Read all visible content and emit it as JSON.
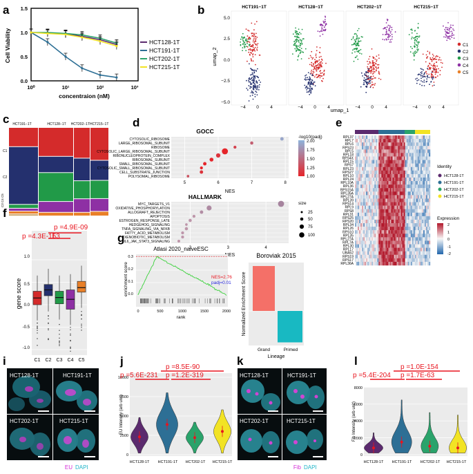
{
  "panel_letters": [
    "a",
    "b",
    "c",
    "d",
    "e",
    "f",
    "g",
    "h",
    "i",
    "j",
    "k",
    "l"
  ],
  "colors": {
    "HCT128": "#5b2a6e",
    "HCT191": "#2d6f95",
    "HCT202": "#2aa36b",
    "HCT215": "#f2e324",
    "C1": "#d42b2b",
    "C2": "#24306e",
    "C3": "#219a48",
    "C4": "#8e30a4",
    "C5": "#e98028",
    "sig": "#e8141e"
  },
  "a": {
    "ylabel": "Cell Viability",
    "xlabel": "concentraion (nM)",
    "yticks": [
      "0.0",
      "0.5",
      "1.0",
      "1.5"
    ],
    "xticks": [
      "10⁰",
      "10¹",
      "10²",
      "10³"
    ],
    "legend": [
      "HCT128-1T",
      "HCT191-1T",
      "HCT202-1T",
      "HCT215-1T"
    ],
    "chart_data": {
      "type": "line",
      "title": "",
      "xlabel": "concentraion (nM)",
      "ylabel": "Cell Viability",
      "xscale": "log",
      "xlim": [
        1,
        1000
      ],
      "ylim": [
        0,
        1.5
      ],
      "series": [
        {
          "name": "HCT128-1T",
          "x": [
            1,
            3,
            10,
            30,
            100,
            300
          ],
          "y": [
            1.0,
            0.99,
            0.97,
            0.92,
            0.85,
            0.75
          ]
        },
        {
          "name": "HCT191-1T",
          "x": [
            1,
            3,
            10,
            30,
            100,
            300
          ],
          "y": [
            1.0,
            0.8,
            0.5,
            0.26,
            0.12,
            0.07
          ]
        },
        {
          "name": "HCT202-1T",
          "x": [
            1,
            3,
            10,
            30,
            100,
            300
          ],
          "y": [
            1.0,
            1.0,
            0.98,
            0.95,
            0.88,
            0.78
          ]
        },
        {
          "name": "HCT215-1T",
          "x": [
            1,
            3,
            10,
            30,
            100,
            300
          ],
          "y": [
            1.0,
            0.98,
            0.96,
            0.9,
            0.82,
            0.72
          ]
        }
      ]
    }
  },
  "b": {
    "titles": [
      "HCT191−1T",
      "HCT128−1T",
      "HCT202−1T",
      "HCT215−1T"
    ],
    "ylabel": "umap_2",
    "xlabel": "umap_1",
    "yticks": [
      "5.0",
      "2.5",
      "0.0",
      "−2.5",
      "−5.0"
    ],
    "xticks": [
      "−4",
      "0",
      "4"
    ],
    "legend": [
      "C1",
      "C2",
      "C3",
      "C4",
      "C5"
    ]
  },
  "c": {
    "titles": [
      "HCT191−1T",
      "HCT128−1T",
      "HCT202−1THCT215−1T"
    ],
    "rowlabels": [
      "C1",
      "C2",
      "C3 C4 C5"
    ]
  },
  "d": {
    "gocc_title": "GOCC",
    "hallmark_title": "HALLMARK",
    "xlabel": "NES",
    "gocc_terms": [
      "CYTOSOLIC_RIBOSOME",
      "LARGE_RIBOSOMAL_SUBUNIT",
      "RIBOSOME",
      "CYTOSOLIC_LARGE_RIBOSOMAL_SUBUNIT",
      "RIBONUCLEOPROTEIN_COMPLEX",
      "RIBOSOMAL_SUBUNIT",
      "SMALL_RIBOSOMAL_SUBUNIT",
      "CYTOSOLIC_SMALL_RIBOSOMAL_SUBUNIT",
      "CELL_SUBSTRATE_JUNCTION",
      "POLYSOMAL_RIBOSOME"
    ],
    "hallmark_terms": [
      "MYC_TARGETS_V1",
      "OXIDATIVE_PHOSPHORYLATION",
      "ALLOGRAFT_REJECTION",
      "APOPTOSIS",
      "ESTROGEN_RESPONSE_LATE",
      "HEDGEHOG_SIGNALING",
      "TNFA_SIGNALING_VIA_NFKB",
      "FATTY_ACID_METABOLISM",
      "XENOBIOTIC_METABOLISM",
      "IL6_JAK_STAT3_SIGNALING"
    ],
    "gocc_xticks": [
      "5",
      "6",
      "7",
      "8"
    ],
    "hallmark_xticks": [
      "2",
      "3",
      "4"
    ],
    "color_legend_title": "-log10(padj)",
    "color_legend_ticks": [
      "2.00",
      "1.75",
      "1.50",
      "1.25",
      "1.00"
    ],
    "size_legend_title": "size",
    "size_legend_ticks": [
      "25",
      "50",
      "75",
      "100"
    ],
    "chart_data": {
      "type": "scatter",
      "panels": [
        {
          "name": "GOCC",
          "terms": [
            "CYTOSOLIC_RIBOSOME",
            "LARGE_RIBOSOMAL_SUBUNIT",
            "RIBOSOME",
            "CYTOSOLIC_LARGE_RIBOSOMAL_SUBUNIT",
            "RIBONUCLEOPROTEIN_COMPLEX",
            "RIBOSOMAL_SUBUNIT",
            "SMALL_RIBOSOMAL_SUBUNIT",
            "CYTOSOLIC_SMALL_RIBOSOMAL_SUBUNIT",
            "CELL_SUBSTRATE_JUNCTION",
            "POLYSOMAL_RIBOSOME"
          ],
          "nes": [
            7.9,
            7.0,
            6.5,
            6.2,
            6.0,
            5.8,
            5.6,
            5.5,
            5.5,
            5.1
          ],
          "neglog10_padj": [
            1.9,
            1.4,
            1.2,
            1.0,
            1.1,
            1.0,
            1.0,
            1.0,
            1.1,
            1.3
          ],
          "size": [
            40,
            35,
            30,
            100,
            60,
            50,
            40,
            30,
            40,
            20
          ]
        },
        {
          "name": "HALLMARK",
          "terms": [
            "MYC_TARGETS_V1",
            "OXIDATIVE_PHOSPHORYLATION",
            "ALLOGRAFT_REJECTION",
            "APOPTOSIS",
            "ESTROGEN_RESPONSE_LATE",
            "HEDGEHOG_SIGNALING",
            "TNFA_SIGNALING_VIA_NFKB",
            "FATTY_ACID_METABOLISM",
            "XENOBIOTIC_METABOLISM",
            "IL6_JAK_STAT3_SIGNALING"
          ],
          "nes": [
            4.4,
            2.5,
            2.3,
            2.1,
            2.0,
            1.9,
            1.9,
            1.8,
            1.8,
            1.7
          ],
          "neglog10_padj": [
            1.6,
            1.4,
            1.3,
            1.0,
            1.0,
            1.0,
            1.0,
            1.0,
            1.0,
            1.0
          ],
          "size": [
            100,
            75,
            40,
            30,
            35,
            20,
            35,
            30,
            30,
            25
          ]
        }
      ]
    }
  },
  "e": {
    "genes": [
      "RPL37",
      "RPL7",
      "RPL6",
      "RPS23",
      "RPL5",
      "RPL18",
      "RPS4X",
      "RPL15",
      "RPS7",
      "RPL23",
      "RPS27",
      "RPL10",
      "RPL24",
      "RPL10A",
      "RPL36",
      "RPS15A",
      "RPL35A",
      "RPL27A",
      "RPL39",
      "RPS14",
      "RPL9",
      "RPS8",
      "RPL31",
      "RPS25",
      "RPS20",
      "RPL34",
      "RPL26",
      "RPS10",
      "RPL35",
      "RPL27A",
      "RPL7A",
      "RPL30",
      "RPL17",
      "UBA52",
      "RPS19",
      "RPS17",
      "RPL36A"
    ],
    "identity_title": "Identity",
    "identity_labels": [
      "HCT128-1T",
      "HCT191-1T",
      "HCT202-1T",
      "HCT215-1T"
    ],
    "expression_title": "Expression",
    "expression_ticks": [
      "2",
      "1",
      "0",
      "-1",
      "-2"
    ]
  },
  "f": {
    "ylabel": "gene score",
    "yticks": [
      "1.0",
      "0.5",
      "0.0",
      "-0.5",
      "-1.0"
    ],
    "xticks": [
      "C1",
      "C2",
      "C3",
      "C4",
      "C5"
    ],
    "pval_top": "p =4.9E-09",
    "pval_second": "p =4.3E-153",
    "chart_data": {
      "type": "box",
      "categories": [
        "C1",
        "C2",
        "C3",
        "C4",
        "C5"
      ],
      "median": [
        0.15,
        0.33,
        0.16,
        0.12,
        0.38
      ],
      "q1": [
        0.0,
        0.2,
        0.02,
        -0.1,
        0.28
      ],
      "q3": [
        0.3,
        0.45,
        0.3,
        0.33,
        0.52
      ],
      "ylim": [
        -1.1,
        1.1
      ]
    }
  },
  "g": {
    "title": "Atlasi 2020_naiveESC",
    "ylabel": "enrichment score",
    "xlabel": "rank",
    "yticks": [
      "0.3",
      "0.2",
      "0.1",
      "0.0"
    ],
    "xticks": [
      "0",
      "500",
      "1000",
      "1500",
      "2000"
    ],
    "nes": "NES=2.76",
    "padj": "padj=0.01"
  },
  "h": {
    "title": "Boroviak 2015",
    "ylabel": "Normalized Enrichment Score",
    "xlabel": "Lineage",
    "categories": [
      "Grand",
      "Primed"
    ],
    "chart_data": {
      "type": "bar",
      "categories": [
        "Grand",
        "Primed"
      ],
      "values": [
        1.0,
        -0.7
      ],
      "ylim": [
        -0.8,
        1.1
      ]
    }
  },
  "i": {
    "labels": [
      "HCT128-1T",
      "HCT191-1T",
      "HCT202-1T",
      "HCT215-1T"
    ],
    "legend_a": "EU",
    "legend_b": "DAPI"
  },
  "j": {
    "ylabel": "EU Intensity (arb unit)",
    "yticks": [
      "10000",
      "7500",
      "5000",
      "2500",
      "0"
    ],
    "xticks": [
      "HCT128-1T",
      "HCT191-1T",
      "HCT202-1T",
      "HCT215-1T"
    ],
    "pvals": [
      "p =5.6E-231",
      "p =8.5E-90",
      "p =1.2E-319"
    ],
    "chart_data": {
      "type": "violin",
      "categories": [
        "HCT128-1T",
        "HCT191-1T",
        "HCT202-1T",
        "HCT215-1T"
      ],
      "mean": [
        2300,
        3900,
        2200,
        3000
      ],
      "ylim": [
        0,
        10000
      ]
    }
  },
  "k": {
    "labels": [
      "HCT128-1T",
      "HCT191-1T",
      "HCT202-1T",
      "HCT215-1T"
    ],
    "legend_a": "Fib",
    "legend_b": "DAPI"
  },
  "l": {
    "ylabel": "Fib Intensity (arb unit)",
    "yticks": [
      "8000",
      "6000",
      "4000",
      "2000",
      "0"
    ],
    "xticks": [
      "HCT128-1T",
      "HCT191-1T",
      "HCT202-1T",
      "HCT215-1T"
    ],
    "pvals": [
      "p =5.4E-204",
      "p =1.0E-154",
      "p =1.7E-63"
    ],
    "chart_data": {
      "type": "violin",
      "categories": [
        "HCT128-1T",
        "HCT191-1T",
        "HCT202-1T",
        "HCT215-1T"
      ],
      "mean": [
        800,
        1500,
        1000,
        800
      ],
      "ylim": [
        0,
        8000
      ]
    }
  }
}
